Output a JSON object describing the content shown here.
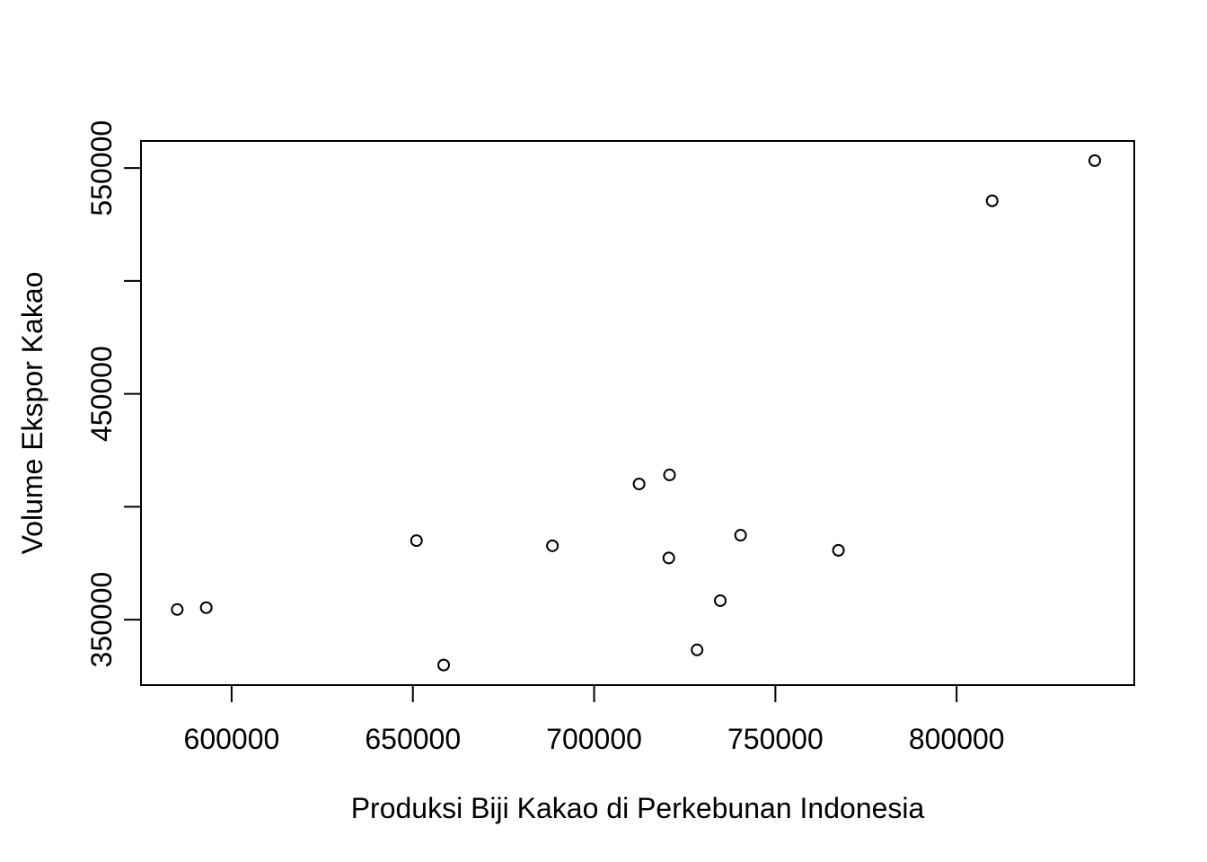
{
  "chart_data": {
    "type": "scatter",
    "title": "",
    "xlabel": "Produksi Biji Kakao di Perkebunan  Indonesia",
    "ylabel": "Volume Ekspor Kakao",
    "xlim": [
      575000,
      849000
    ],
    "ylim": [
      321000,
      562000
    ],
    "x_ticks": [
      600000,
      650000,
      700000,
      750000,
      800000
    ],
    "y_ticks": [
      350000,
      400000,
      450000,
      500000,
      550000
    ],
    "y_tick_labels": [
      "350000",
      "",
      "450000",
      "",
      "550000"
    ],
    "marker": "open-circle",
    "grid": false,
    "points": [
      {
        "x": 585000,
        "y": 354500
      },
      {
        "x": 593000,
        "y": 355300
      },
      {
        "x": 651000,
        "y": 385000
      },
      {
        "x": 658500,
        "y": 329900
      },
      {
        "x": 688500,
        "y": 382700
      },
      {
        "x": 712400,
        "y": 410100
      },
      {
        "x": 720800,
        "y": 414100
      },
      {
        "x": 720600,
        "y": 377300
      },
      {
        "x": 728400,
        "y": 336600
      },
      {
        "x": 734800,
        "y": 358400
      },
      {
        "x": 740400,
        "y": 387400
      },
      {
        "x": 767400,
        "y": 380700
      },
      {
        "x": 809800,
        "y": 535500
      },
      {
        "x": 838100,
        "y": 553300
      }
    ]
  }
}
